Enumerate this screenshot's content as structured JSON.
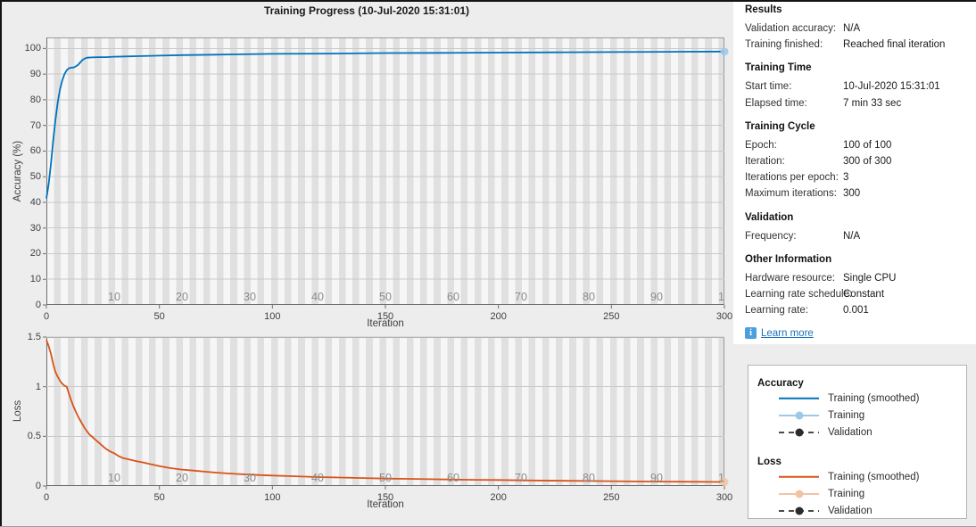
{
  "title": "Training Progress (10-Jul-2020 15:31:01)",
  "colors": {
    "accuracy_line": "#0072BD",
    "accuracy_training_light": "#9DC9E8",
    "loss_line": "#D95319",
    "loss_training_light": "#F3C3A6",
    "validation_line": "#4A4A4A",
    "validation_marker": "#2B2B2B",
    "epoch_label": "#8C8C8C",
    "gridline": "#C9C9C9",
    "tick": "#6E6E6E",
    "link": "#1B70C0",
    "info_icon_bg": "#4AA0DC"
  },
  "chart_data": [
    {
      "type": "line",
      "ylabel": "Accuracy (%)",
      "xlabel": "Iteration",
      "xlim": [
        0,
        300
      ],
      "ylim": [
        0,
        104.3
      ],
      "yticks": [
        0,
        10,
        20,
        30,
        40,
        50,
        60,
        70,
        80,
        90,
        100
      ],
      "xticks": [
        0,
        50,
        100,
        150,
        200,
        250,
        300
      ],
      "grid": "horizontal",
      "epoch_labels": [
        {
          "label": "10",
          "x": 30
        },
        {
          "label": "20",
          "x": 60
        },
        {
          "label": "30",
          "x": 90
        },
        {
          "label": "40",
          "x": 120
        },
        {
          "label": "50",
          "x": 150
        },
        {
          "label": "60",
          "x": 180
        },
        {
          "label": "70",
          "x": 210
        },
        {
          "label": "80",
          "x": 240
        },
        {
          "label": "90",
          "x": 270
        },
        {
          "label": "1",
          "x": 298.6
        }
      ],
      "series": [
        {
          "name": "Training (smoothed)",
          "color_key": "accuracy_line",
          "points": [
            [
              0,
              41.5
            ],
            [
              1,
              47
            ],
            [
              2,
              55
            ],
            [
              3,
              64
            ],
            [
              4,
              72
            ],
            [
              5,
              79
            ],
            [
              6,
              84
            ],
            [
              7,
              87.5
            ],
            [
              8,
              90
            ],
            [
              9,
              91.5
            ],
            [
              10,
              92.3
            ],
            [
              11,
              92.5
            ],
            [
              12,
              92.6
            ],
            [
              13,
              93
            ],
            [
              14,
              93.6
            ],
            [
              15,
              94.6
            ],
            [
              16,
              95.5
            ],
            [
              17,
              96.1
            ],
            [
              18,
              96.4
            ],
            [
              20,
              96.5
            ],
            [
              23,
              96.6
            ],
            [
              26,
              96.6
            ],
            [
              30,
              96.8
            ],
            [
              35,
              96.9
            ],
            [
              40,
              97.0
            ],
            [
              50,
              97.2
            ],
            [
              60,
              97.4
            ],
            [
              75,
              97.6
            ],
            [
              100,
              97.9
            ],
            [
              125,
              98.0
            ],
            [
              150,
              98.2
            ],
            [
              175,
              98.3
            ],
            [
              200,
              98.4
            ],
            [
              225,
              98.5
            ],
            [
              250,
              98.6
            ],
            [
              275,
              98.7
            ],
            [
              300,
              98.8
            ]
          ]
        }
      ],
      "end_marker": {
        "x": 300,
        "y": 98.8,
        "color_key": "accuracy_training_light"
      }
    },
    {
      "type": "line",
      "ylabel": "Loss",
      "xlabel": "Iteration",
      "xlim": [
        0,
        300
      ],
      "ylim": [
        0,
        1.5
      ],
      "yticks": [
        0,
        0.5,
        1,
        1.5
      ],
      "xticks": [
        0,
        50,
        100,
        150,
        200,
        250,
        300
      ],
      "grid": "horizontal",
      "epoch_labels": [
        {
          "label": "10",
          "x": 30
        },
        {
          "label": "20",
          "x": 60
        },
        {
          "label": "30",
          "x": 90
        },
        {
          "label": "40",
          "x": 120
        },
        {
          "label": "50",
          "x": 150
        },
        {
          "label": "60",
          "x": 180
        },
        {
          "label": "70",
          "x": 210
        },
        {
          "label": "80",
          "x": 240
        },
        {
          "label": "90",
          "x": 270
        },
        {
          "label": "1",
          "x": 298.6
        }
      ],
      "series": [
        {
          "name": "Training (smoothed)",
          "color_key": "loss_line",
          "points": [
            [
              0,
              1.47
            ],
            [
              1,
              1.41
            ],
            [
              2,
              1.33
            ],
            [
              3,
              1.23
            ],
            [
              4,
              1.15
            ],
            [
              5,
              1.1
            ],
            [
              6,
              1.06
            ],
            [
              7,
              1.03
            ],
            [
              8,
              1.01
            ],
            [
              9,
              1.0
            ],
            [
              10,
              0.93
            ],
            [
              11,
              0.86
            ],
            [
              12,
              0.8
            ],
            [
              13,
              0.75
            ],
            [
              14,
              0.7
            ],
            [
              15,
              0.66
            ],
            [
              16,
              0.62
            ],
            [
              17,
              0.58
            ],
            [
              18,
              0.55
            ],
            [
              19,
              0.52
            ],
            [
              20,
              0.5
            ],
            [
              22,
              0.46
            ],
            [
              24,
              0.42
            ],
            [
              26,
              0.38
            ],
            [
              28,
              0.35
            ],
            [
              30,
              0.33
            ],
            [
              32,
              0.3
            ],
            [
              34,
              0.28
            ],
            [
              36,
              0.27
            ],
            [
              38,
              0.26
            ],
            [
              40,
              0.25
            ],
            [
              43,
              0.235
            ],
            [
              46,
              0.22
            ],
            [
              50,
              0.2
            ],
            [
              55,
              0.18
            ],
            [
              60,
              0.165
            ],
            [
              65,
              0.155
            ],
            [
              70,
              0.145
            ],
            [
              75,
              0.135
            ],
            [
              80,
              0.127
            ],
            [
              85,
              0.12
            ],
            [
              90,
              0.115
            ],
            [
              95,
              0.11
            ],
            [
              100,
              0.105
            ],
            [
              110,
              0.098
            ],
            [
              120,
              0.09
            ],
            [
              130,
              0.085
            ],
            [
              140,
              0.08
            ],
            [
              150,
              0.075
            ],
            [
              160,
              0.072
            ],
            [
              170,
              0.068
            ],
            [
              180,
              0.065
            ],
            [
              190,
              0.062
            ],
            [
              200,
              0.06
            ],
            [
              215,
              0.056
            ],
            [
              230,
              0.052
            ],
            [
              245,
              0.049
            ],
            [
              260,
              0.046
            ],
            [
              275,
              0.044
            ],
            [
              290,
              0.042
            ],
            [
              300,
              0.04
            ]
          ]
        }
      ],
      "end_marker": {
        "x": 300,
        "y": 0.04,
        "color_key": "loss_training_light"
      }
    }
  ],
  "panel": {
    "sections": [
      {
        "heading": "Results",
        "rows": [
          {
            "label": "Validation accuracy:",
            "value": "N/A"
          },
          {
            "label": "Training finished:",
            "value": "Reached final iteration"
          }
        ]
      },
      {
        "heading": "Training Time",
        "rows": [
          {
            "label": "Start time:",
            "value": "10-Jul-2020 15:31:01"
          },
          {
            "label": "Elapsed time:",
            "value": "7 min 33 sec"
          }
        ]
      },
      {
        "heading": "Training Cycle",
        "rows": [
          {
            "label": "Epoch:",
            "value": "100 of 100"
          },
          {
            "label": "Iteration:",
            "value": "300 of 300"
          },
          {
            "label": "Iterations per epoch:",
            "value": "3"
          },
          {
            "label": "Maximum iterations:",
            "value": "300"
          }
        ]
      },
      {
        "heading": "Validation",
        "rows": [
          {
            "label": "Frequency:",
            "value": "N/A"
          }
        ]
      },
      {
        "heading": "Other Information",
        "rows": [
          {
            "label": "Hardware resource:",
            "value": "Single CPU"
          },
          {
            "label": "Learning rate schedule:",
            "value": "Constant"
          },
          {
            "label": "Learning rate:",
            "value": "0.001"
          }
        ]
      }
    ],
    "link_label": "Learn more",
    "info_glyph": "i"
  },
  "legend": {
    "groups": [
      {
        "title": "Accuracy",
        "items": [
          {
            "label": "Training (smoothed)",
            "style": "solid",
            "color_key": "accuracy_line"
          },
          {
            "label": "Training",
            "style": "line-marker",
            "color_key": "accuracy_training_light"
          },
          {
            "label": "Validation",
            "style": "dash-marker",
            "color_key": "validation_marker"
          }
        ]
      },
      {
        "title": "Loss",
        "items": [
          {
            "label": "Training (smoothed)",
            "style": "solid",
            "color_key": "loss_line"
          },
          {
            "label": "Training",
            "style": "line-marker",
            "color_key": "loss_training_light"
          },
          {
            "label": "Validation",
            "style": "dash-marker",
            "color_key": "validation_marker"
          }
        ]
      }
    ]
  }
}
